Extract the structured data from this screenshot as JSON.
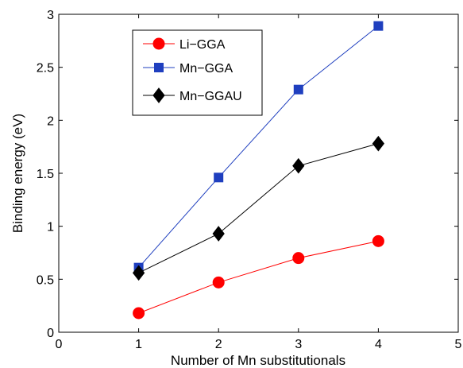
{
  "chart_data": {
    "type": "line",
    "title": "",
    "xlabel": "Number of Mn substitutionals",
    "ylabel": "Binding energy (eV)",
    "xlim": [
      0,
      5
    ],
    "ylim": [
      0,
      3
    ],
    "xticks": [
      0,
      1,
      2,
      3,
      4,
      5
    ],
    "yticks": [
      0,
      0.5,
      1,
      1.5,
      2,
      2.5,
      3
    ],
    "grid": false,
    "legend_position": "top-left",
    "x": [
      1,
      2,
      3,
      4
    ],
    "series": [
      {
        "name": "Li−GGA",
        "values": [
          0.18,
          0.47,
          0.7,
          0.86
        ],
        "color": "#ff0000",
        "marker": "circle"
      },
      {
        "name": "Mn−GGA",
        "values": [
          0.61,
          1.46,
          2.29,
          2.89
        ],
        "color": "#1f3fbf",
        "marker": "square"
      },
      {
        "name": "Mn−GGAU",
        "values": [
          0.56,
          0.93,
          1.57,
          1.78
        ],
        "color": "#000000",
        "marker": "diamond"
      }
    ]
  }
}
